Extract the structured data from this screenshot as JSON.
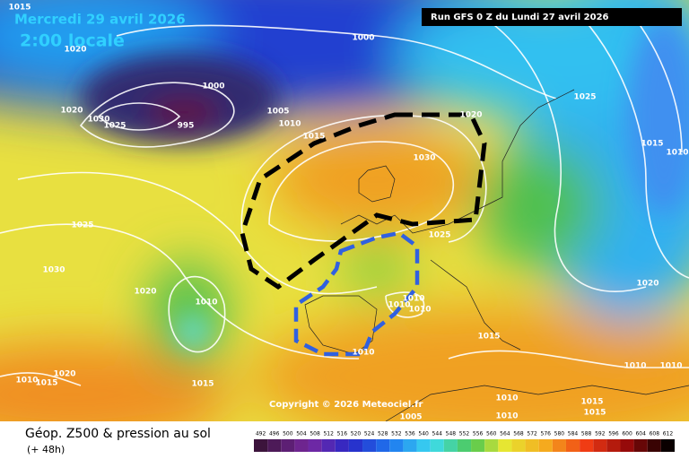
{
  "header": {
    "date": "Mercredi 29 avril 2026",
    "time": "2:00 locale",
    "run": "Run GFS 0 Z du Lundi 27 avril 2026"
  },
  "map": {
    "isobar_labels": [
      "1015",
      "1020",
      "1000",
      "1000",
      "1020",
      "1030",
      "1025",
      "995",
      "1005",
      "1010",
      "1015",
      "1020",
      "1025",
      "1015",
      "1010",
      "1030",
      "1025",
      "1030",
      "1020",
      "1010",
      "1025",
      "1010",
      "1010",
      "1010",
      "1015",
      "1010",
      "1020",
      "1010",
      "1010",
      "1010",
      "1015",
      "1020",
      "1015",
      "1010",
      "1010",
      "1015",
      "1015",
      "1005"
    ],
    "copyright": "Copyright © 2026 Meteociel.fr"
  },
  "footer": {
    "title": "Géop. Z500 & pression au sol",
    "lead": "(+ 48h)"
  },
  "legend": {
    "levels": [
      492,
      496,
      500,
      504,
      508,
      512,
      516,
      520,
      524,
      528,
      532,
      536,
      540,
      544,
      548,
      552,
      556,
      560,
      564,
      568,
      572,
      576,
      580,
      584,
      588,
      592,
      596,
      600,
      604,
      608,
      612
    ]
  }
}
